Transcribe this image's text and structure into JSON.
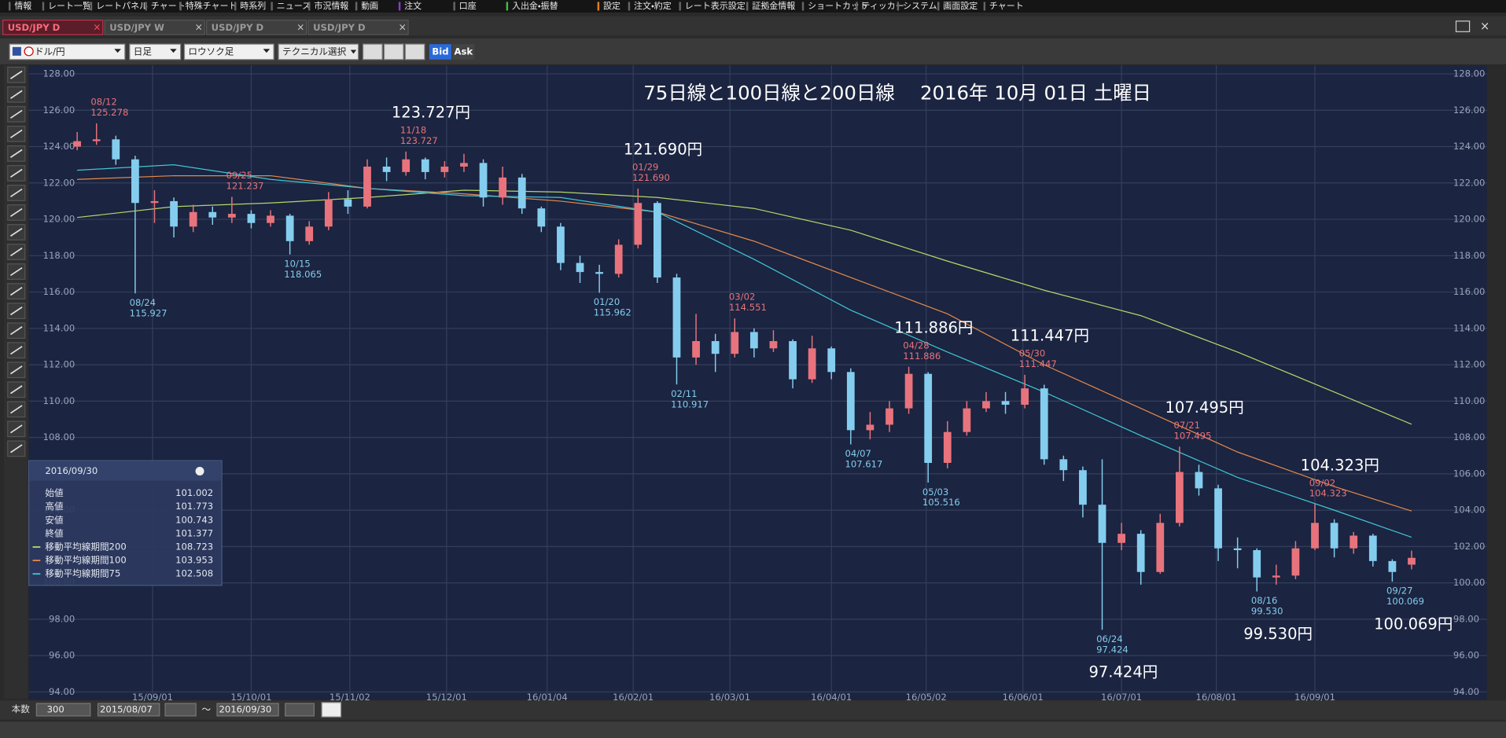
{
  "menu": [
    "情報",
    "レート一覧",
    "レートパネル",
    "チャート",
    "特殊チャート",
    "時系列",
    "ニュース",
    "市況情報",
    "動画",
    "注文",
    "口座",
    "入出金・振替",
    "設定",
    "注文・約定",
    "レート表示設定",
    "証拠金情報",
    "ショートカット",
    "ティッカー",
    "システム",
    "画面設定",
    "チャート"
  ],
  "tabs": [
    "USD/JPY D",
    "USD/JPY W",
    "USD/JPY D",
    "USD/JPY D"
  ],
  "toolbar": {
    "pair": "ドル/円",
    "period": "日足",
    "style": "ロウソク足",
    "technical": "テクニカル選択",
    "bid": "Bid",
    "ask": "Ask"
  },
  "chart_data": {
    "type": "candlestick",
    "title": "75日線と100日線と200日線　 2016年 10月 01日 土曜日",
    "xlim": [
      -2.5,
      71
    ],
    "xticks": [
      {
        "value": 3.9,
        "label": "15/09/01"
      },
      {
        "value": 9,
        "label": "15/10/01"
      },
      {
        "value": 14.1,
        "label": "15/11/02"
      },
      {
        "value": 19.1,
        "label": "15/12/01"
      },
      {
        "value": 24.3,
        "label": "16/01/04"
      },
      {
        "value": 28.75,
        "label": "16/02/01"
      },
      {
        "value": 33.75,
        "label": "16/03/01"
      },
      {
        "value": 39,
        "label": "16/04/01"
      },
      {
        "value": 43.9,
        "label": "16/05/02"
      },
      {
        "value": 48.9,
        "label": "16/06/01"
      },
      {
        "value": 54,
        "label": "16/07/01"
      },
      {
        "value": 58.9,
        "label": "16/08/01"
      },
      {
        "value": 64,
        "label": "16/09/01"
      }
    ],
    "ylim": [
      94,
      128
    ],
    "yticks": [
      {
        "value": 94,
        "label": "94.00"
      },
      {
        "value": 96,
        "label": "96.00"
      },
      {
        "value": 98,
        "label": "98.00"
      },
      {
        "value": 100,
        "label": "100.00"
      },
      {
        "value": 102,
        "label": "102.00"
      },
      {
        "value": 104,
        "label": "104.00"
      },
      {
        "value": 106,
        "label": "106.00"
      },
      {
        "value": 108,
        "label": "108.00"
      },
      {
        "value": 110,
        "label": "110.00"
      },
      {
        "value": 112,
        "label": "112.00"
      },
      {
        "value": 114,
        "label": "114.00"
      },
      {
        "value": 116,
        "label": "116.00"
      },
      {
        "value": 118,
        "label": "118.00"
      },
      {
        "value": 120,
        "label": "120.00"
      },
      {
        "value": 122,
        "label": "122.00"
      },
      {
        "value": 124,
        "label": "124.00"
      },
      {
        "value": 126,
        "label": "126.00"
      },
      {
        "value": 128,
        "label": "128.00"
      }
    ],
    "grid": true,
    "up_color": "#e8737d",
    "down_color": "#84cdee",
    "open": [
      124.0,
      124.3,
      124.4,
      123.3,
      120.9,
      121.0,
      119.6,
      120.4,
      120.1,
      120.3,
      119.8,
      120.2,
      118.8,
      119.6,
      121.1,
      120.7,
      122.9,
      122.6,
      123.3,
      122.6,
      122.9,
      123.1,
      121.2,
      122.3,
      120.6,
      119.6,
      117.6,
      117.1,
      117.0,
      118.6,
      120.9,
      116.8,
      112.4,
      113.3,
      112.6,
      113.8,
      112.9,
      113.3,
      111.2,
      112.9,
      111.6,
      108.4,
      108.7,
      109.6,
      111.5,
      106.6,
      108.3,
      109.6,
      110.0,
      109.8,
      110.7,
      106.8,
      106.2,
      104.3,
      102.2,
      102.7,
      100.6,
      103.3,
      106.1,
      105.2,
      101.9,
      101.8,
      100.3,
      100.4,
      101.9,
      103.3,
      101.9,
      102.6,
      101.2,
      101.002
    ],
    "high": [
      124.8,
      125.278,
      124.6,
      123.5,
      121.6,
      121.2,
      120.8,
      120.7,
      121.237,
      120.5,
      120.5,
      120.3,
      119.9,
      121.5,
      121.6,
      123.3,
      123.4,
      123.727,
      123.4,
      123.2,
      123.6,
      123.3,
      122.9,
      122.5,
      120.7,
      119.8,
      118.0,
      117.5,
      118.9,
      121.69,
      121.0,
      117.0,
      114.8,
      113.7,
      114.551,
      114.0,
      113.9,
      113.4,
      113.6,
      113.0,
      111.8,
      109.4,
      110.0,
      111.886,
      111.6,
      108.9,
      110.0,
      110.5,
      110.5,
      111.447,
      110.9,
      107.0,
      106.4,
      106.8,
      103.3,
      102.9,
      103.8,
      107.495,
      106.5,
      105.4,
      102.5,
      101.9,
      101.0,
      102.3,
      104.323,
      103.5,
      102.8,
      102.7,
      101.3,
      101.773
    ],
    "low": [
      123.8,
      124.1,
      123.0,
      115.927,
      119.8,
      119.0,
      119.3,
      119.7,
      119.8,
      119.5,
      119.6,
      118.065,
      118.6,
      119.4,
      120.3,
      120.6,
      122.1,
      122.4,
      122.2,
      122.3,
      122.6,
      120.7,
      120.8,
      120.3,
      119.3,
      117.2,
      116.5,
      115.962,
      116.8,
      118.4,
      116.5,
      110.917,
      112.0,
      111.6,
      112.4,
      112.4,
      112.7,
      110.7,
      111.0,
      111.2,
      107.617,
      107.9,
      108.3,
      109.3,
      105.516,
      106.3,
      108.1,
      109.4,
      109.3,
      109.6,
      106.5,
      105.6,
      103.6,
      97.424,
      101.8,
      99.9,
      100.5,
      103.1,
      104.8,
      101.2,
      100.8,
      99.53,
      99.9,
      100.2,
      101.8,
      101.4,
      101.6,
      100.9,
      100.069,
      100.743
    ],
    "close": [
      124.3,
      124.4,
      123.3,
      120.9,
      121.0,
      119.6,
      120.4,
      120.1,
      120.3,
      119.8,
      120.2,
      118.8,
      119.6,
      121.1,
      120.7,
      122.9,
      122.6,
      123.3,
      122.6,
      122.9,
      123.1,
      121.2,
      122.3,
      120.6,
      119.6,
      117.6,
      117.1,
      117.0,
      118.6,
      120.9,
      116.8,
      112.4,
      113.3,
      112.6,
      113.8,
      112.9,
      113.3,
      111.2,
      112.9,
      111.6,
      108.4,
      108.7,
      109.6,
      111.5,
      106.6,
      108.3,
      109.6,
      110.0,
      109.8,
      110.7,
      106.8,
      106.2,
      104.3,
      102.2,
      102.7,
      100.6,
      103.3,
      106.1,
      105.2,
      101.9,
      101.8,
      100.3,
      100.4,
      101.9,
      103.3,
      101.9,
      102.6,
      101.2,
      100.6,
      101.377
    ],
    "moving_averages": [
      {
        "name": "移動平均線期間200",
        "color": "#b5d66a",
        "x": [
          0,
          5,
          10,
          15,
          20,
          25,
          30,
          35,
          40,
          45,
          50,
          55,
          60,
          65,
          69
        ],
        "values": [
          120.1,
          120.7,
          120.9,
          121.2,
          121.6,
          121.5,
          121.2,
          120.6,
          119.4,
          117.7,
          116.1,
          114.7,
          112.7,
          110.5,
          108.723
        ]
      },
      {
        "name": "移動平均線期間100",
        "color": "#e3894a",
        "x": [
          0,
          5,
          10,
          15,
          20,
          25,
          30,
          35,
          40,
          45,
          50,
          55,
          60,
          65,
          69
        ],
        "values": [
          122.2,
          122.4,
          122.4,
          121.7,
          121.4,
          121.0,
          120.4,
          118.8,
          116.8,
          114.8,
          112.0,
          109.6,
          107.2,
          105.3,
          103.953
        ]
      },
      {
        "name": "移動平均線期間75",
        "color": "#3fc6d6",
        "x": [
          0,
          5,
          10,
          15,
          20,
          25,
          30,
          35,
          40,
          45,
          50,
          55,
          60,
          65,
          69
        ],
        "values": [
          122.7,
          123.0,
          122.2,
          121.7,
          121.3,
          121.2,
          120.4,
          117.8,
          115.0,
          112.7,
          110.5,
          108.1,
          105.8,
          104.0,
          102.508
        ]
      }
    ],
    "annotations": [
      {
        "date": "08/12",
        "value": 125.278,
        "x": 1
      },
      {
        "date": "08/24",
        "value": 115.927,
        "x": 3
      },
      {
        "date": "09/25",
        "value": 121.237,
        "x": 8
      },
      {
        "date": "10/15",
        "value": 118.065,
        "x": 11
      },
      {
        "date": "11/18",
        "value": 123.727,
        "x": 17,
        "big": "123.727円"
      },
      {
        "date": "01/20",
        "value": 115.962,
        "x": 27
      },
      {
        "date": "01/29",
        "value": 121.69,
        "label": "121.690",
        "x": 29,
        "big": "121.690円"
      },
      {
        "date": "02/11",
        "value": 110.917,
        "x": 31
      },
      {
        "date": "03/02",
        "value": 114.551,
        "x": 34
      },
      {
        "date": "04/07",
        "value": 107.617,
        "x": 40
      },
      {
        "date": "04/28",
        "value": 111.886,
        "x": 43,
        "big": "111.886円"
      },
      {
        "date": "05/03",
        "value": 105.516,
        "x": 44
      },
      {
        "date": "05/30",
        "value": 111.447,
        "x": 49,
        "big": "111.447円"
      },
      {
        "date": "06/24",
        "value": 97.424,
        "x": 53,
        "big": "97.424円"
      },
      {
        "date": "07/21",
        "value": 107.495,
        "x": 57,
        "big": "107.495円"
      },
      {
        "date": "08/16",
        "value": 99.53,
        "label": "99.530",
        "x": 61,
        "big": "99.530円"
      },
      {
        "date": "09/02",
        "value": 104.323,
        "x": 64,
        "big": "104.323円"
      },
      {
        "date": "09/27",
        "value": 100.069,
        "x": 68,
        "big": "100.069円"
      }
    ]
  },
  "info_panel": {
    "date": "2016/09/30",
    "labels": [
      "始値",
      "高値",
      "安値",
      "終値"
    ]
  },
  "footer": {
    "count_label": "本数",
    "count": 300,
    "from": "2015/08/07",
    "separator": "～",
    "to": "2016/09/30"
  }
}
